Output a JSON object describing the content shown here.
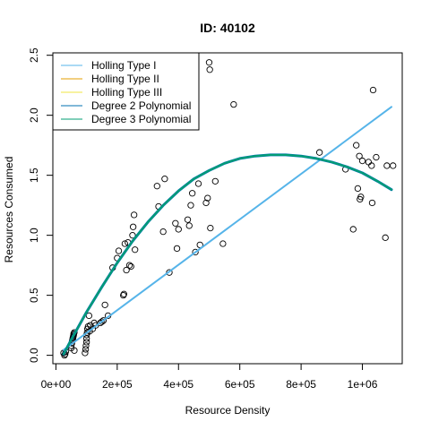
{
  "chart_data": {
    "type": "scatter",
    "title": "ID: 40102",
    "xlabel": "Resource Density",
    "ylabel": "Resources Consumed",
    "xlim": [
      -10000,
      1130000
    ],
    "ylim": [
      -0.07,
      2.52
    ],
    "xticks": [
      0,
      200000,
      400000,
      600000,
      800000,
      1000000
    ],
    "xtick_labels": [
      "0e+00",
      "2e+05",
      "4e+05",
      "6e+05",
      "8e+05",
      "1e+06"
    ],
    "yticks": [
      0.0,
      0.5,
      1.0,
      1.5,
      2.0,
      2.5
    ],
    "ytick_labels": [
      "0.0",
      "0.5",
      "1.0",
      "1.5",
      "2.0",
      "2.5"
    ],
    "grid": false,
    "legend_position": "top-left",
    "legend": [
      {
        "name": "Holling Type I",
        "color": "#56B4E9"
      },
      {
        "name": "Holling Type II",
        "color": "#E69F00"
      },
      {
        "name": "Holling Type III",
        "color": "#F0E442"
      },
      {
        "name": "Degree 2 Polynomial",
        "color": "#0072B2"
      },
      {
        "name": "Degree 3 Polynomial",
        "color": "#009E73"
      }
    ],
    "series": [
      {
        "name": "Holling Type I",
        "kind": "line",
        "color": "#56B4E9",
        "width": 2,
        "x": [
          25000,
          1095000
        ],
        "y": [
          0.045,
          2.07
        ]
      },
      {
        "name": "Degree 2 Polynomial",
        "kind": "line",
        "color": "#0072B2",
        "width": 3,
        "x": [
          25000,
          50000,
          100000,
          150000,
          200000,
          250000,
          300000,
          350000,
          400000,
          450000,
          500000,
          550000,
          600000,
          650000,
          700000,
          750000,
          800000,
          850000,
          900000,
          950000,
          1000000,
          1050000,
          1095000
        ],
        "y": [
          0.01,
          0.13,
          0.36,
          0.57,
          0.77,
          0.95,
          1.11,
          1.25,
          1.37,
          1.47,
          1.54,
          1.6,
          1.64,
          1.66,
          1.67,
          1.67,
          1.66,
          1.64,
          1.61,
          1.57,
          1.52,
          1.45,
          1.38
        ]
      },
      {
        "name": "Degree 3 Polynomial",
        "kind": "line",
        "color": "#009E73",
        "width": 2,
        "x": [
          25000,
          50000,
          100000,
          150000,
          200000,
          250000,
          300000,
          350000,
          400000,
          450000,
          500000,
          550000,
          600000,
          650000,
          700000,
          750000,
          800000,
          850000,
          900000,
          950000,
          1000000,
          1050000,
          1095000
        ],
        "y": [
          0.01,
          0.13,
          0.36,
          0.57,
          0.77,
          0.95,
          1.11,
          1.25,
          1.37,
          1.47,
          1.54,
          1.6,
          1.64,
          1.66,
          1.67,
          1.67,
          1.66,
          1.64,
          1.61,
          1.57,
          1.52,
          1.45,
          1.38
        ]
      }
    ],
    "points": {
      "x": [
        25000,
        28000,
        30000,
        32000,
        50000,
        50000,
        52000,
        53000,
        55000,
        55000,
        56000,
        57000,
        58000,
        58000,
        60000,
        60000,
        95000,
        97000,
        98000,
        100000,
        100000,
        100000,
        102000,
        103000,
        105000,
        108000,
        110000,
        112000,
        120000,
        125000,
        130000,
        145000,
        150000,
        155000,
        160000,
        170000,
        185000,
        200000,
        205000,
        220000,
        222000,
        225000,
        230000,
        235000,
        240000,
        245000,
        250000,
        252000,
        255000,
        258000,
        330000,
        335000,
        350000,
        355000,
        370000,
        390000,
        395000,
        400000,
        430000,
        435000,
        440000,
        445000,
        455000,
        465000,
        470000,
        490000,
        495000,
        500000,
        502000,
        504000,
        520000,
        545000,
        580000,
        860000,
        945000,
        970000,
        980000,
        985000,
        990000,
        992000,
        995000,
        1000000,
        1020000,
        1030000,
        1032000,
        1035000,
        1045000,
        1075000,
        1080000,
        1100000
      ],
      "y": [
        0.02,
        0.0,
        0.01,
        0.03,
        0.06,
        0.08,
        0.1,
        0.12,
        0.13,
        0.14,
        0.15,
        0.16,
        0.17,
        0.18,
        0.19,
        0.04,
        0.02,
        0.05,
        0.08,
        0.11,
        0.14,
        0.17,
        0.19,
        0.22,
        0.24,
        0.33,
        0.2,
        0.25,
        0.22,
        0.27,
        0.25,
        0.27,
        0.28,
        0.29,
        0.42,
        0.33,
        0.73,
        0.81,
        0.87,
        0.5,
        0.51,
        0.93,
        0.71,
        0.94,
        0.75,
        0.74,
        1.0,
        1.07,
        1.17,
        0.88,
        1.41,
        1.24,
        1.03,
        1.47,
        0.69,
        1.1,
        0.89,
        1.05,
        1.13,
        1.08,
        1.25,
        1.35,
        0.86,
        1.43,
        0.92,
        1.27,
        1.31,
        2.44,
        2.38,
        1.06,
        1.45,
        0.93,
        2.09,
        1.69,
        1.55,
        1.05,
        1.75,
        1.39,
        1.66,
        1.3,
        1.32,
        1.62,
        1.61,
        1.58,
        1.27,
        2.21,
        1.65,
        0.98,
        1.58,
        1.58
      ]
    }
  }
}
